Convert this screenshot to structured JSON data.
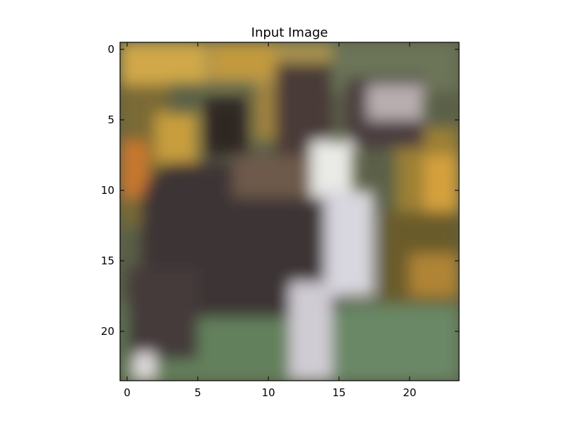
{
  "chart_data": {
    "type": "heatmap",
    "title": "Input Image",
    "xlabel": "",
    "ylabel": "",
    "image_grid": [
      24,
      24
    ],
    "x_ticks": [
      0,
      5,
      10,
      15,
      20
    ],
    "y_ticks": [
      0,
      5,
      10,
      15,
      20
    ],
    "xlim": [
      -0.5,
      23.5
    ],
    "ylim": [
      23.5,
      -0.5
    ],
    "image_description_colors": {
      "background_yellow": "#c8a040",
      "background_green": "#607a58",
      "dog_dark": "#3e3434",
      "dog_white": "#e8e8e4",
      "frame": "#000000"
    }
  }
}
